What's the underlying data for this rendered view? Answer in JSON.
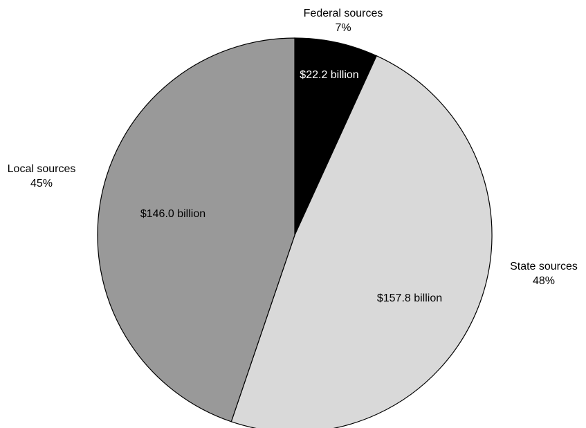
{
  "chart_data": {
    "type": "pie",
    "title": "",
    "slices": [
      {
        "name": "Federal sources",
        "percent_label": "7%",
        "value": 22.2,
        "value_label": "$22.2 billion",
        "color": "#000000",
        "text_color": "#ffffff"
      },
      {
        "name": "State sources",
        "percent_label": "48%",
        "value": 157.8,
        "value_label": "$157.8 billion",
        "color": "#d9d9d9",
        "text_color": "#000000"
      },
      {
        "name": "Local sources",
        "percent_label": "45%",
        "value": 146.0,
        "value_label": "$146.0 billion",
        "color": "#999999",
        "text_color": "#000000"
      }
    ],
    "legend": "none"
  }
}
